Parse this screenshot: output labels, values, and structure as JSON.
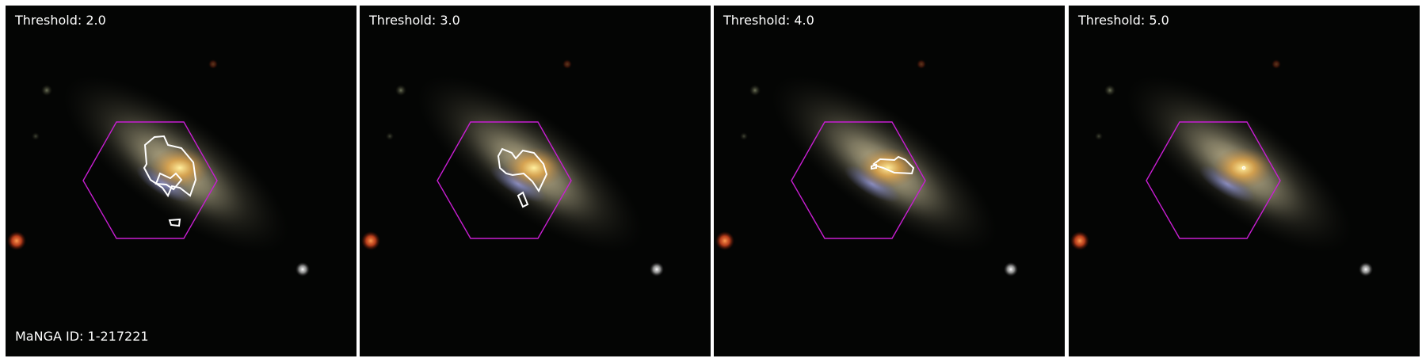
{
  "manga_id_label": "MaNGA ID: 1-217221",
  "panels": [
    {
      "label": "Threshold: 2.0",
      "threshold": 2.0
    },
    {
      "label": "Threshold: 3.0",
      "threshold": 3.0
    },
    {
      "label": "Threshold: 4.0",
      "threshold": 4.0
    },
    {
      "label": "Threshold: 5.0",
      "threshold": 5.0
    }
  ],
  "colors": {
    "hexagon": "#c81ed2",
    "contour": "#ffffff",
    "background": "#000000"
  }
}
